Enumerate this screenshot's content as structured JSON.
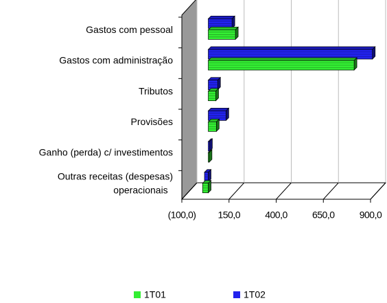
{
  "chart_data": {
    "type": "bar",
    "orientation": "horizontal",
    "categories": [
      "Gastos com pessoal",
      "Gastos com administração",
      "Tributos",
      "Provisões",
      "Ganho (perda) c/ investimentos",
      [
        "Outras receitas (despesas)",
        "operacionais"
      ]
    ],
    "series": [
      {
        "name": "1T01",
        "color": "#33ee33",
        "values": [
          144,
          773,
          40,
          43,
          5,
          -30
        ]
      },
      {
        "name": "1T02",
        "color": "#2222ee",
        "values": [
          126,
          870,
          50,
          94,
          7,
          -20
        ]
      }
    ],
    "xlim": [
      -100,
      900
    ],
    "xticks": [
      {
        "value": -100,
        "label": "(100,0)"
      },
      {
        "value": 150,
        "label": "150,0"
      },
      {
        "value": 400,
        "label": "400,0"
      },
      {
        "value": 650,
        "label": "650,0"
      },
      {
        "value": 900,
        "label": "900,0"
      }
    ],
    "grid": true,
    "legend": "bottom"
  }
}
